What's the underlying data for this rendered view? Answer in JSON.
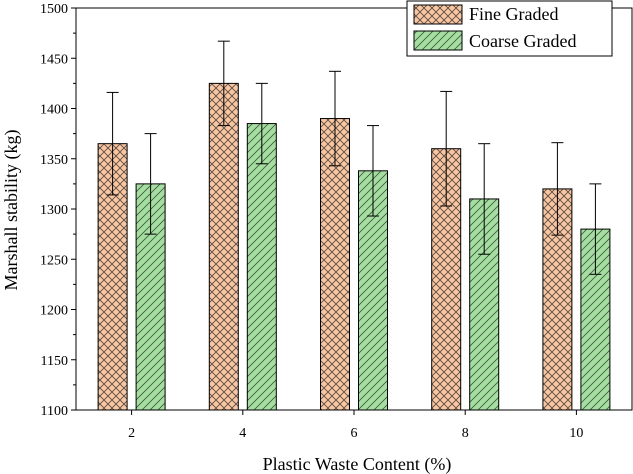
{
  "chart_data": {
    "type": "bar",
    "title": "",
    "xlabel": "Plastic Waste Content (%)",
    "ylabel": "Marshall stability (kg)",
    "categories": [
      "2",
      "4",
      "6",
      "8",
      "10"
    ],
    "ylim": [
      1100,
      1500
    ],
    "yticks": [
      1100,
      1150,
      1200,
      1250,
      1300,
      1350,
      1400,
      1450,
      1500
    ],
    "grid": false,
    "legend_position": "top-right",
    "series": [
      {
        "name": "Fine Graded",
        "fill": "#f6c6a5",
        "hatch": "crosshatch",
        "values": [
          1365,
          1425,
          1390,
          1360,
          1320
        ],
        "error": [
          51,
          42,
          47,
          57,
          46
        ]
      },
      {
        "name": "Coarse Graded",
        "fill": "#a6dea2",
        "hatch": "diagonal",
        "values": [
          1325,
          1385,
          1338,
          1310,
          1280
        ],
        "error": [
          50,
          40,
          45,
          55,
          45
        ]
      }
    ]
  }
}
